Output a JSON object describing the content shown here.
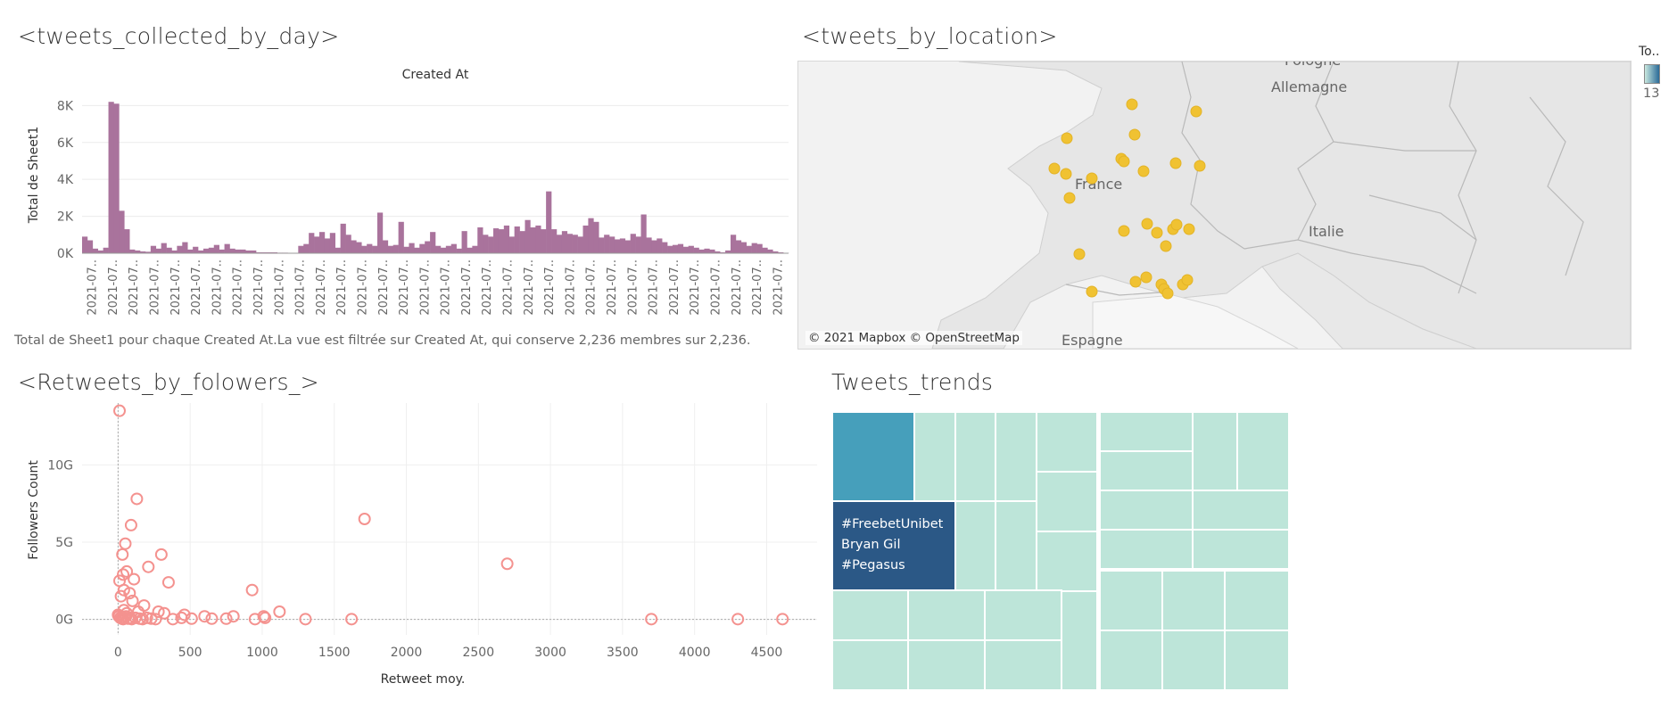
{
  "titles": {
    "day": "<tweets_collected_by_day>",
    "location": "<tweets_by_location>",
    "retweets": "<Retweets_by_folowers_>",
    "trends": "Tweets_trends"
  },
  "caption_day": "Total de Sheet1 pour chaque Created At.La vue est filtrée sur Created At, qui conserve 2,236 membres sur 2,236.",
  "map": {
    "credit": "© 2021 Mapbox © OpenStreetMap",
    "labels": [
      "Pologne",
      "Allemagne",
      "France",
      "Italie",
      "Espagne"
    ],
    "legend_title": "To..",
    "legend_value": "13",
    "point_color": "#f0c232"
  },
  "chart_data": [
    {
      "type": "bar",
      "title": "Created At",
      "xlabel": "",
      "ylabel": "Total de Sheet1",
      "ylim": [
        0,
        8500
      ],
      "yticks": [
        "0K",
        "2K",
        "4K",
        "6K",
        "8K"
      ],
      "x_tick_label": "2021-07..",
      "x_tick_count": 34,
      "color": "#a9739c",
      "values": [
        900,
        700,
        250,
        150,
        300,
        8200,
        8100,
        2300,
        1300,
        200,
        150,
        100,
        80,
        400,
        250,
        550,
        300,
        150,
        400,
        600,
        200,
        350,
        150,
        250,
        300,
        450,
        200,
        500,
        250,
        200,
        200,
        150,
        150,
        50,
        50,
        50,
        50,
        30,
        30,
        20,
        20,
        400,
        500,
        1100,
        900,
        1150,
        800,
        1100,
        300,
        1600,
        1000,
        700,
        600,
        400,
        500,
        400,
        2200,
        700,
        400,
        450,
        1700,
        350,
        550,
        300,
        500,
        650,
        1150,
        400,
        300,
        400,
        500,
        250,
        1200,
        300,
        400,
        1400,
        1000,
        900,
        1350,
        1300,
        1500,
        900,
        1450,
        1200,
        1800,
        1400,
        1500,
        1300,
        3350,
        1300,
        1000,
        1200,
        1050,
        1000,
        900,
        1500,
        1900,
        1700,
        850,
        1000,
        900,
        750,
        800,
        700,
        1050,
        900,
        2100,
        850,
        700,
        800,
        600,
        400,
        450,
        500,
        350,
        400,
        300,
        200,
        250,
        200,
        100,
        50,
        150,
        1000,
        700,
        600,
        400,
        550,
        500,
        300,
        200,
        100,
        50,
        20
      ]
    },
    {
      "type": "scatter",
      "title": "",
      "xlabel": "Retweet moy.",
      "ylabel": "Followers Count",
      "xlim": [
        -250,
        4850
      ],
      "ylim": [
        -1,
        14
      ],
      "xticks": [
        "0",
        "500",
        "1000",
        "1500",
        "2000",
        "2500",
        "3000",
        "3500",
        "4000",
        "4500"
      ],
      "yticks": [
        "0G",
        "5G",
        "10G"
      ],
      "color": "#f4928f",
      "points": [
        [
          10,
          13.5
        ],
        [
          130,
          7.8
        ],
        [
          90,
          6.1
        ],
        [
          300,
          4.2
        ],
        [
          1710,
          6.5
        ],
        [
          50,
          4.9
        ],
        [
          30,
          4.2
        ],
        [
          210,
          3.4
        ],
        [
          60,
          3.1
        ],
        [
          35,
          2.9
        ],
        [
          2700,
          3.6
        ],
        [
          110,
          2.6
        ],
        [
          350,
          2.4
        ],
        [
          10,
          2.5
        ],
        [
          930,
          1.9
        ],
        [
          40,
          1.9
        ],
        [
          80,
          1.7
        ],
        [
          20,
          1.5
        ],
        [
          100,
          1.2
        ],
        [
          180,
          0.9
        ],
        [
          1120,
          0.5
        ],
        [
          280,
          0.5
        ],
        [
          40,
          0.6
        ],
        [
          140,
          0.5
        ],
        [
          60,
          0.4
        ],
        [
          320,
          0.4
        ],
        [
          460,
          0.3
        ],
        [
          600,
          0.2
        ],
        [
          800,
          0.2
        ],
        [
          1010,
          0.2
        ],
        [
          1020,
          0.1
        ],
        [
          440,
          0.1
        ],
        [
          510,
          0.05
        ],
        [
          650,
          0.05
        ],
        [
          750,
          0.05
        ],
        [
          950,
          0.02
        ],
        [
          1300,
          0.02
        ],
        [
          1620,
          0.02
        ],
        [
          3700,
          0.02
        ],
        [
          4300,
          0.02
        ],
        [
          4610,
          0.02
        ],
        [
          0,
          0.3
        ],
        [
          5,
          0.2
        ],
        [
          15,
          0.1
        ],
        [
          25,
          0.05
        ],
        [
          35,
          0.02
        ],
        [
          45,
          0.1
        ],
        [
          55,
          0.2
        ],
        [
          70,
          0.05
        ],
        [
          85,
          0.1
        ],
        [
          95,
          0.02
        ],
        [
          120,
          0.1
        ],
        [
          150,
          0.05
        ],
        [
          170,
          0.02
        ],
        [
          200,
          0.1
        ],
        [
          230,
          0.05
        ],
        [
          260,
          0.02
        ],
        [
          380,
          0.02
        ]
      ]
    },
    {
      "type": "treemap",
      "title": "",
      "label_lines": [
        "#FreebetUnibet",
        "Bryan Gil",
        "#Pegasus"
      ],
      "base_color": "#bde5d9",
      "highlight_colors": [
        "#469fbb",
        "#2b5886"
      ]
    }
  ]
}
